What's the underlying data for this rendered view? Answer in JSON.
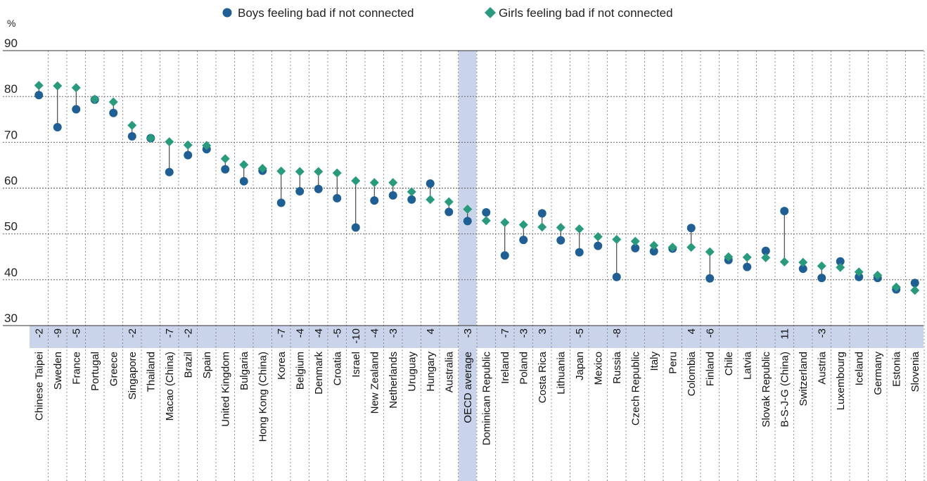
{
  "colors": {
    "boys": "#1f5f94",
    "girls": "#2a9a7e",
    "band": "#c9d3ea",
    "grid": "#555555"
  },
  "chart_data": {
    "type": "scatter",
    "unit_label": "%",
    "ylim": [
      30,
      90
    ],
    "yticks": [
      30,
      40,
      50,
      60,
      70,
      80,
      90
    ],
    "highlight_category": "OECD average",
    "legend_position": "top",
    "categories": [
      "Chinese Taipei",
      "Sweden",
      "France",
      "Portugal",
      "Greece",
      "Singapore",
      "Thailand",
      "Macao (China)",
      "Brazil",
      "Spain",
      "United Kingdom",
      "Bulgaria",
      "Hong Kong (China)",
      "Korea",
      "Belgium",
      "Denmark",
      "Croatia",
      "Israel",
      "New Zealand",
      "Netherlands",
      "Uruguay",
      "Hungary",
      "Australia",
      "OECD average",
      "Dominican Republic",
      "Ireland",
      "Poland",
      "Costa Rica",
      "Lithuania",
      "Japan",
      "Mexico",
      "Russia",
      "Czech Republic",
      "Italy",
      "Peru",
      "Colombia",
      "Finland",
      "Chile",
      "Latvia",
      "Slovak Republic",
      "B-S-J-G (China)",
      "Switzerland",
      "Austria",
      "Luxembourg",
      "Iceland",
      "Germany",
      "Estonia",
      "Slovenia"
    ],
    "differences": [
      "-2",
      "-9",
      "-5",
      "",
      "",
      "-2",
      "",
      "-7",
      "-2",
      "",
      "",
      "",
      "",
      "-7",
      "-4",
      "-4",
      "-5",
      "-10",
      "-4",
      "-3",
      "",
      "4",
      "",
      "-3",
      "",
      "-7",
      "-3",
      "3",
      "",
      "-5",
      "",
      "-8",
      "",
      "",
      "",
      "4",
      "-6",
      "",
      "",
      "",
      "11",
      "",
      "-3",
      "",
      "",
      "",
      "",
      ""
    ],
    "series": [
      {
        "name": "Boys feeling bad if not connected",
        "marker": "circle",
        "values": [
          80.3,
          73.3,
          77.2,
          79.3,
          76.4,
          71.3,
          70.9,
          63.5,
          67.2,
          68.5,
          64.1,
          61.5,
          63.8,
          56.8,
          59.3,
          59.8,
          57.8,
          51.4,
          57.3,
          58.4,
          57.5,
          61.0,
          54.8,
          52.8,
          54.7,
          45.3,
          48.7,
          54.5,
          48.6,
          46.0,
          47.4,
          40.6,
          46.9,
          46.2,
          46.8,
          51.3,
          40.3,
          44.3,
          42.8,
          46.3,
          55.0,
          42.4,
          40.4,
          44.0,
          40.6,
          40.4,
          37.9,
          39.3
        ]
      },
      {
        "name": "Girls feeling bad if not connected",
        "marker": "diamond",
        "values": [
          82.4,
          82.3,
          81.9,
          79.4,
          78.8,
          73.7,
          70.9,
          70.1,
          69.4,
          69.3,
          66.4,
          65.1,
          64.3,
          63.7,
          63.6,
          63.6,
          63.3,
          61.6,
          61.2,
          61.2,
          59.2,
          57.5,
          57.0,
          55.4,
          52.9,
          52.5,
          52.0,
          51.5,
          51.4,
          51.1,
          49.4,
          48.8,
          48.4,
          47.5,
          47.1,
          47.1,
          46.1,
          45.0,
          44.9,
          44.8,
          43.9,
          43.8,
          43.0,
          42.7,
          41.7,
          41.0,
          38.4,
          37.7
        ]
      }
    ]
  }
}
